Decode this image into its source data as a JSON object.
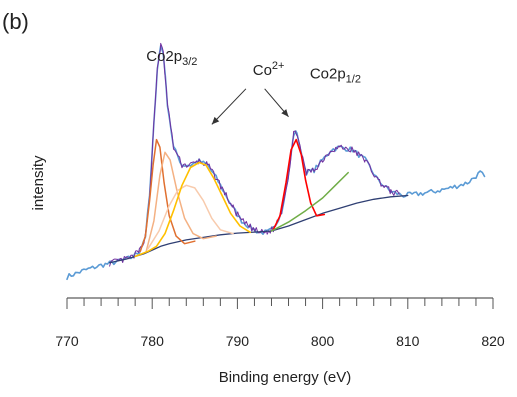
{
  "chart_data": {
    "type": "line",
    "panel_label": "(b)",
    "xlabel": "Binding energy (eV)",
    "ylabel": "intensity",
    "xlim": [
      770,
      820
    ],
    "x_ticks": [
      770,
      780,
      790,
      800,
      810,
      820
    ],
    "ylim": [
      0,
      1
    ],
    "y_ticks_shown": false,
    "grid": false,
    "annotations": [
      {
        "parts": [
          "Co2p",
          "3/2"
        ],
        "x": 779.3,
        "y": 0.91
      },
      {
        "parts": [
          "Co",
          "2+"
        ],
        "x": 791.8,
        "y": 0.855
      },
      {
        "parts": [
          "Co2p",
          "1/2"
        ],
        "x": 798.5,
        "y": 0.84
      }
    ],
    "arrows": [
      {
        "from": [
          791.0,
          0.8
        ],
        "to": [
          787.0,
          0.66
        ]
      },
      {
        "from": [
          793.2,
          0.8
        ],
        "to": [
          796.0,
          0.69
        ]
      }
    ],
    "series": [
      {
        "color": "#5b9bd5",
        "width": 1.6,
        "noise": 0.01,
        "seed": 7,
        "step": 0.25,
        "points": [
          [
            770,
            0.06
          ],
          [
            772,
            0.085
          ],
          [
            774,
            0.105
          ],
          [
            776,
            0.12
          ],
          [
            777.5,
            0.135
          ],
          [
            778.5,
            0.16
          ],
          [
            779.2,
            0.22
          ],
          [
            779.7,
            0.38
          ],
          [
            780.2,
            0.66
          ],
          [
            780.6,
            0.88
          ],
          [
            781.0,
            0.97
          ],
          [
            781.3,
            0.94
          ],
          [
            781.8,
            0.74
          ],
          [
            782.5,
            0.57
          ],
          [
            783.5,
            0.5
          ],
          [
            784.5,
            0.5
          ],
          [
            785.5,
            0.515
          ],
          [
            786.5,
            0.5
          ],
          [
            787.5,
            0.45
          ],
          [
            788.5,
            0.39
          ],
          [
            789.5,
            0.33
          ],
          [
            790.5,
            0.28
          ],
          [
            791.5,
            0.255
          ],
          [
            792.5,
            0.235
          ],
          [
            793.5,
            0.235
          ],
          [
            794.3,
            0.25
          ],
          [
            795.2,
            0.32
          ],
          [
            796.0,
            0.46
          ],
          [
            796.6,
            0.62
          ],
          [
            797.0,
            0.63
          ],
          [
            797.5,
            0.54
          ],
          [
            798.1,
            0.47
          ],
          [
            799.0,
            0.48
          ],
          [
            800.0,
            0.52
          ],
          [
            801.0,
            0.56
          ],
          [
            802.0,
            0.57
          ],
          [
            803.5,
            0.56
          ],
          [
            805,
            0.52
          ],
          [
            806.5,
            0.44
          ],
          [
            808,
            0.395
          ],
          [
            809.5,
            0.38
          ],
          [
            811,
            0.385
          ],
          [
            813,
            0.395
          ],
          [
            815,
            0.41
          ],
          [
            817,
            0.43
          ],
          [
            818.5,
            0.47
          ],
          [
            819,
            0.455
          ]
        ]
      },
      {
        "color": "#7030a0",
        "width": 1.0,
        "noise": 0.013,
        "seed": 13,
        "step": 0.18,
        "points": [
          [
            775,
            0.115
          ],
          [
            776,
            0.12
          ],
          [
            777.5,
            0.135
          ],
          [
            778.5,
            0.16
          ],
          [
            779.2,
            0.22
          ],
          [
            779.7,
            0.38
          ],
          [
            780.2,
            0.66
          ],
          [
            780.6,
            0.88
          ],
          [
            781.0,
            0.97
          ],
          [
            781.3,
            0.94
          ],
          [
            781.8,
            0.74
          ],
          [
            782.5,
            0.57
          ],
          [
            783.5,
            0.5
          ],
          [
            784.5,
            0.5
          ],
          [
            785.5,
            0.515
          ],
          [
            786.5,
            0.5
          ],
          [
            787.5,
            0.45
          ],
          [
            788.5,
            0.39
          ],
          [
            789.5,
            0.33
          ],
          [
            790.5,
            0.28
          ],
          [
            791.5,
            0.255
          ],
          [
            792.5,
            0.235
          ],
          [
            793.5,
            0.235
          ],
          [
            794.3,
            0.25
          ],
          [
            795.2,
            0.32
          ],
          [
            796.0,
            0.46
          ],
          [
            796.6,
            0.62
          ],
          [
            797.0,
            0.63
          ],
          [
            797.5,
            0.54
          ],
          [
            798.1,
            0.47
          ],
          [
            799.0,
            0.48
          ],
          [
            800.0,
            0.52
          ],
          [
            801.0,
            0.56
          ],
          [
            802.0,
            0.57
          ],
          [
            803.5,
            0.56
          ],
          [
            805,
            0.52
          ],
          [
            806.5,
            0.44
          ],
          [
            808,
            0.395
          ],
          [
            809,
            0.385
          ]
        ]
      },
      {
        "color": "#2f3f73",
        "width": 1.3,
        "noise": 0,
        "seed": 1,
        "step": 0,
        "points": [
          [
            775,
            0.115
          ],
          [
            777,
            0.13
          ],
          [
            779,
            0.15
          ],
          [
            780,
            0.165
          ],
          [
            781,
            0.18
          ],
          [
            782,
            0.19
          ],
          [
            784,
            0.205
          ],
          [
            786,
            0.215
          ],
          [
            788,
            0.225
          ],
          [
            790,
            0.232
          ],
          [
            792,
            0.236
          ],
          [
            794,
            0.24
          ],
          [
            796,
            0.26
          ],
          [
            798,
            0.285
          ],
          [
            800,
            0.31
          ],
          [
            802,
            0.33
          ],
          [
            804,
            0.35
          ],
          [
            806,
            0.365
          ],
          [
            808,
            0.375
          ],
          [
            810,
            0.38
          ]
        ]
      },
      {
        "color": "#e07030",
        "width": 1.5,
        "noise": 0,
        "seed": 1,
        "step": 0,
        "points": [
          [
            778.6,
            0.16
          ],
          [
            779.2,
            0.22
          ],
          [
            779.7,
            0.36
          ],
          [
            780.1,
            0.5
          ],
          [
            780.5,
            0.6
          ],
          [
            780.9,
            0.57
          ],
          [
            781.4,
            0.43
          ],
          [
            782.0,
            0.3
          ],
          [
            782.8,
            0.22
          ],
          [
            783.8,
            0.19
          ],
          [
            785,
            0.2
          ]
        ]
      },
      {
        "color": "#f4b183",
        "width": 1.5,
        "noise": 0,
        "seed": 1,
        "step": 0,
        "points": [
          [
            779.3,
            0.16
          ],
          [
            780.2,
            0.28
          ],
          [
            780.9,
            0.46
          ],
          [
            781.5,
            0.55
          ],
          [
            782.1,
            0.52
          ],
          [
            782.9,
            0.4
          ],
          [
            783.8,
            0.29
          ],
          [
            784.8,
            0.23
          ],
          [
            786,
            0.21
          ],
          [
            787.5,
            0.22
          ]
        ]
      },
      {
        "color": "#f8cbad",
        "width": 1.5,
        "noise": 0,
        "seed": 1,
        "step": 0,
        "points": [
          [
            779.5,
            0.17
          ],
          [
            780.8,
            0.24
          ],
          [
            782,
            0.34
          ],
          [
            783,
            0.4
          ],
          [
            784,
            0.42
          ],
          [
            785,
            0.41
          ],
          [
            786,
            0.36
          ],
          [
            787,
            0.29
          ],
          [
            788,
            0.245
          ],
          [
            789.5,
            0.23
          ]
        ]
      },
      {
        "color": "#ffc000",
        "width": 1.6,
        "noise": 0,
        "seed": 1,
        "step": 0,
        "points": [
          [
            778,
            0.14
          ],
          [
            779.5,
            0.16
          ],
          [
            780.5,
            0.18
          ],
          [
            781.5,
            0.23
          ],
          [
            782.5,
            0.32
          ],
          [
            783.5,
            0.42
          ],
          [
            784.5,
            0.49
          ],
          [
            785.5,
            0.51
          ],
          [
            786.3,
            0.5
          ],
          [
            787.2,
            0.45
          ],
          [
            788.2,
            0.38
          ],
          [
            789.2,
            0.31
          ],
          [
            790.3,
            0.26
          ],
          [
            791.5,
            0.235
          ]
        ]
      },
      {
        "color": "#ff0000",
        "width": 1.6,
        "noise": 0,
        "seed": 1,
        "step": 0,
        "points": [
          [
            794.2,
            0.245
          ],
          [
            795.0,
            0.3
          ],
          [
            795.7,
            0.43
          ],
          [
            796.3,
            0.56
          ],
          [
            796.9,
            0.6
          ],
          [
            797.5,
            0.54
          ],
          [
            798.0,
            0.44
          ],
          [
            798.6,
            0.35
          ],
          [
            799.3,
            0.3
          ],
          [
            800.2,
            0.305
          ]
        ]
      },
      {
        "color": "#70ad47",
        "width": 1.5,
        "noise": 0,
        "seed": 1,
        "step": 0,
        "points": [
          [
            794.0,
            0.24
          ],
          [
            796.0,
            0.275
          ],
          [
            798.0,
            0.32
          ],
          [
            800.0,
            0.37
          ],
          [
            801.5,
            0.42
          ],
          [
            803,
            0.47
          ]
        ]
      }
    ]
  }
}
